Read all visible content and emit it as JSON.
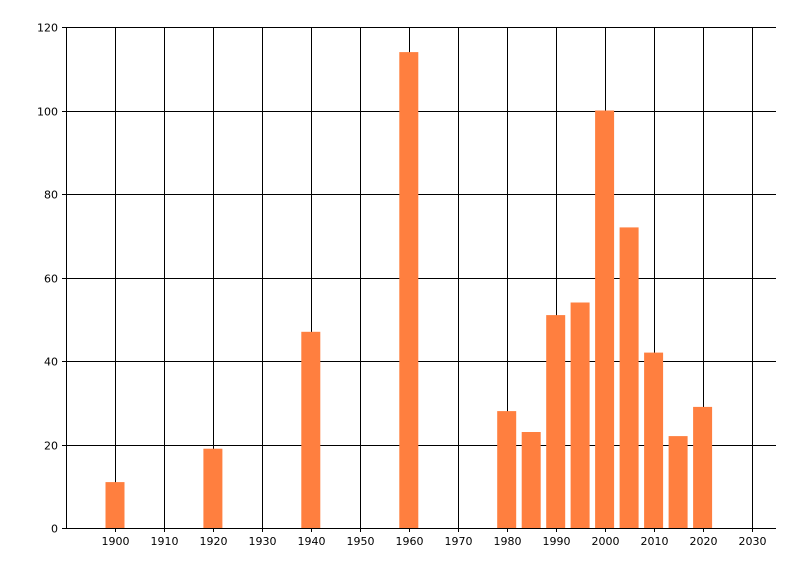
{
  "chart_data": {
    "type": "bar",
    "title": "",
    "xlabel": "",
    "ylabel": "",
    "x": [
      1900,
      1920,
      1940,
      1960,
      1980,
      1985,
      1990,
      1995,
      2000,
      2005,
      2010,
      2015,
      2020
    ],
    "values": [
      11,
      19,
      47,
      114,
      28,
      23,
      51,
      54,
      100,
      72,
      42,
      22,
      29
    ],
    "bar_color": "#ff7f3f",
    "xlim": [
      1890,
      2035
    ],
    "ylim": [
      0,
      120
    ],
    "x_ticks": [
      1900,
      1910,
      1920,
      1930,
      1940,
      1950,
      1960,
      1970,
      1980,
      1990,
      2000,
      2010,
      2020,
      2030
    ],
    "y_ticks": [
      0,
      20,
      40,
      60,
      80,
      100,
      120
    ],
    "grid": true,
    "legend": "none"
  }
}
